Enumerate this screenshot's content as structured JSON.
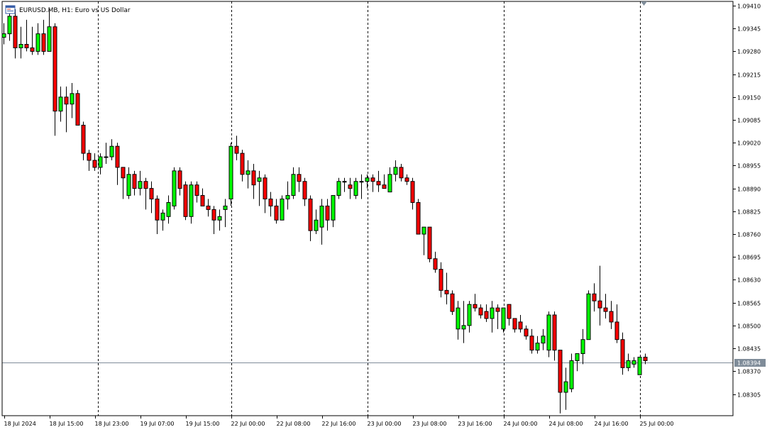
{
  "header": {
    "symbol_title": "EURUSD.MB, H1:  Euro vs US Dollar",
    "icon": "chart-window-icon"
  },
  "colors": {
    "background": "#ffffff",
    "frame": "#000000",
    "bull_body": "#00ff00",
    "bear_body": "#ff0000",
    "wick": "#000000",
    "separator": "#000000",
    "bid_line": "#7f8c99",
    "bid_box": "#7f8c99"
  },
  "chart_data": {
    "type": "candlestick",
    "title": "EURUSD.MB, H1:  Euro vs US Dollar",
    "timeframe": "H1",
    "ylim": [
      1.08245,
      1.0942
    ],
    "y_ticks": [
      1.0941,
      1.09345,
      1.0928,
      1.09215,
      1.0915,
      1.09085,
      1.0902,
      1.08955,
      1.0889,
      1.08825,
      1.0876,
      1.08695,
      1.0863,
      1.08565,
      1.085,
      1.08435,
      1.0837,
      1.08305
    ],
    "y_tick_labels": [
      "1.09410",
      "1.09345",
      "1.09280",
      "1.09215",
      "1.09150",
      "1.09085",
      "1.09020",
      "1.08955",
      "1.08890",
      "1.08825",
      "1.08760",
      "1.08695",
      "1.08630",
      "1.08565",
      "1.08500",
      "1.08435",
      "1.08370",
      "1.08305"
    ],
    "x_labels": [
      {
        "bar": 0,
        "label": "18 Jul 2024"
      },
      {
        "bar": 8,
        "label": "18 Jul 15:00"
      },
      {
        "bar": 16,
        "label": "18 Jul 23:00"
      },
      {
        "bar": 24,
        "label": "19 Jul 07:00"
      },
      {
        "bar": 32,
        "label": "19 Jul 15:00"
      },
      {
        "bar": 40,
        "label": "22 Jul 00:00"
      },
      {
        "bar": 48,
        "label": "22 Jul 08:00"
      },
      {
        "bar": 56,
        "label": "22 Jul 16:00"
      },
      {
        "bar": 64,
        "label": "23 Jul 00:00"
      },
      {
        "bar": 72,
        "label": "23 Jul 08:00"
      },
      {
        "bar": 80,
        "label": "23 Jul 16:00"
      },
      {
        "bar": 88,
        "label": "24 Jul 00:00"
      },
      {
        "bar": 96,
        "label": "24 Jul 08:00"
      },
      {
        "bar": 104,
        "label": "24 Jul 16:00"
      },
      {
        "bar": 112,
        "label": "25 Jul 00:00"
      }
    ],
    "day_separators_after_bar": [
      16.5,
      40,
      64,
      88,
      112
    ],
    "current_price": 1.08394,
    "current_price_label": "1.08394",
    "candles": [
      [
        1.0932,
        1.0936,
        1.093,
        1.0933
      ],
      [
        1.0933,
        1.0941,
        1.0931,
        1.0938
      ],
      [
        1.0938,
        1.094,
        1.0926,
        1.0929
      ],
      [
        1.0929,
        1.0935,
        1.0926,
        1.093
      ],
      [
        1.093,
        1.0937,
        1.0928,
        1.0929
      ],
      [
        1.0929,
        1.0935,
        1.0927,
        1.0928
      ],
      [
        1.0928,
        1.0936,
        1.0927,
        1.0933
      ],
      [
        1.0933,
        1.0937,
        1.0927,
        1.0928
      ],
      [
        1.0928,
        1.094,
        1.0928,
        1.0935
      ],
      [
        1.0935,
        1.0936,
        1.0904,
        1.0911
      ],
      [
        1.0911,
        1.0918,
        1.0908,
        1.0915
      ],
      [
        1.0915,
        1.0918,
        1.0905,
        1.0913
      ],
      [
        1.0913,
        1.0919,
        1.0909,
        1.0916
      ],
      [
        1.0916,
        1.0917,
        1.0907,
        1.0907
      ],
      [
        1.0907,
        1.0908,
        1.0897,
        1.0899
      ],
      [
        1.0899,
        1.09,
        1.0894,
        1.0897
      ],
      [
        1.0897,
        1.0899,
        1.0894,
        1.0895
      ],
      [
        1.0895,
        1.0899,
        1.0893,
        1.0898
      ],
      [
        1.0898,
        1.0902,
        1.0896,
        1.0898
      ],
      [
        1.0898,
        1.0903,
        1.0897,
        1.0901
      ],
      [
        1.0901,
        1.0902,
        1.089,
        1.0895
      ],
      [
        1.0895,
        1.0895,
        1.0886,
        1.0892
      ],
      [
        1.0887,
        1.0895,
        1.0886,
        1.0893
      ],
      [
        1.0893,
        1.0894,
        1.0887,
        1.0889
      ],
      [
        1.0889,
        1.0894,
        1.0887,
        1.0891
      ],
      [
        1.0891,
        1.0892,
        1.0883,
        1.0889
      ],
      [
        1.0889,
        1.0891,
        1.0882,
        1.0886
      ],
      [
        1.0886,
        1.0887,
        1.0876,
        1.088
      ],
      [
        1.088,
        1.0883,
        1.0877,
        1.0882
      ],
      [
        1.0881,
        1.0887,
        1.0879,
        1.0885
      ],
      [
        1.0884,
        1.0895,
        1.0883,
        1.0894
      ],
      [
        1.0894,
        1.0895,
        1.0887,
        1.0889
      ],
      [
        1.089,
        1.0891,
        1.088,
        1.0881
      ],
      [
        1.0881,
        1.0891,
        1.0879,
        1.089
      ],
      [
        1.089,
        1.0891,
        1.0885,
        1.0887
      ],
      [
        1.0887,
        1.0889,
        1.0885,
        1.0884
      ],
      [
        1.0884,
        1.0886,
        1.0881,
        1.0883
      ],
      [
        1.0883,
        1.0884,
        1.0876,
        1.088
      ],
      [
        1.088,
        1.0883,
        1.0877,
        1.0881
      ],
      [
        1.0883,
        1.0886,
        1.0878,
        1.0884
      ],
      [
        1.0886,
        1.0902,
        1.0884,
        1.0901
      ],
      [
        1.0901,
        1.0904,
        1.0897,
        1.0899
      ],
      [
        1.0899,
        1.09,
        1.0891,
        1.0893
      ],
      [
        1.0893,
        1.0897,
        1.0889,
        1.0894
      ],
      [
        1.0894,
        1.0896,
        1.0886,
        1.089
      ],
      [
        1.0891,
        1.0894,
        1.0884,
        1.0892
      ],
      [
        1.0892,
        1.0893,
        1.0882,
        1.0886
      ],
      [
        1.0886,
        1.0888,
        1.0881,
        1.0884
      ],
      [
        1.0884,
        1.0886,
        1.0879,
        1.088
      ],
      [
        1.088,
        1.0887,
        1.088,
        1.0886
      ],
      [
        1.0886,
        1.0891,
        1.0883,
        1.0887
      ],
      [
        1.0887,
        1.0895,
        1.0886,
        1.0893
      ],
      [
        1.0893,
        1.0895,
        1.0888,
        1.0891
      ],
      [
        1.0891,
        1.0892,
        1.0884,
        1.0886
      ],
      [
        1.0886,
        1.0887,
        1.0874,
        1.0877
      ],
      [
        1.0877,
        1.0883,
        1.0876,
        1.088
      ],
      [
        1.0878,
        1.0886,
        1.0873,
        1.0884
      ],
      [
        1.0884,
        1.0886,
        1.0877,
        1.088
      ],
      [
        1.088,
        1.0887,
        1.0878,
        1.0887
      ],
      [
        1.0887,
        1.0892,
        1.0886,
        1.0891
      ],
      [
        1.0891,
        1.0892,
        1.0888,
        1.0891
      ],
      [
        1.089,
        1.0892,
        1.0886,
        1.0889
      ],
      [
        1.0887,
        1.0892,
        1.0886,
        1.0891
      ],
      [
        1.0891,
        1.0893,
        1.0886,
        1.0891
      ],
      [
        1.0891,
        1.0893,
        1.0889,
        1.0892
      ],
      [
        1.0892,
        1.0893,
        1.0888,
        1.0891
      ],
      [
        1.0891,
        1.0894,
        1.0888,
        1.089
      ],
      [
        1.089,
        1.0893,
        1.0889,
        1.0889
      ],
      [
        1.0888,
        1.0895,
        1.0888,
        1.0893
      ],
      [
        1.0893,
        1.0897,
        1.0891,
        1.0895
      ],
      [
        1.0895,
        1.0896,
        1.0891,
        1.0892
      ],
      [
        1.0892,
        1.0893,
        1.089,
        1.0891
      ],
      [
        1.0891,
        1.0892,
        1.0883,
        1.0885
      ],
      [
        1.0885,
        1.0886,
        1.0876,
        1.0876
      ],
      [
        1.0876,
        1.0877,
        1.087,
        1.0878
      ],
      [
        1.0878,
        1.0878,
        1.0868,
        1.0869
      ],
      [
        1.0869,
        1.0871,
        1.0865,
        1.0866
      ],
      [
        1.0866,
        1.0868,
        1.0858,
        1.086
      ],
      [
        1.086,
        1.0865,
        1.0856,
        1.0859
      ],
      [
        1.0859,
        1.086,
        1.0853,
        1.0854
      ],
      [
        1.0849,
        1.0857,
        1.0846,
        1.0855
      ],
      [
        1.0849,
        1.0857,
        1.0845,
        1.085
      ],
      [
        1.085,
        1.0857,
        1.0848,
        1.0856
      ],
      [
        1.0856,
        1.0859,
        1.0854,
        1.0855
      ],
      [
        1.0855,
        1.0856,
        1.0852,
        1.0853
      ],
      [
        1.0854,
        1.0856,
        1.0851,
        1.0852
      ],
      [
        1.0852,
        1.0857,
        1.0848,
        1.0855
      ],
      [
        1.0855,
        1.0856,
        1.0849,
        1.0854
      ],
      [
        1.0849,
        1.0855,
        1.0848,
        1.0855
      ],
      [
        1.0856,
        1.0856,
        1.085,
        1.0852
      ],
      [
        1.0852,
        1.0852,
        1.0848,
        1.0849
      ],
      [
        1.0851,
        1.0853,
        1.0848,
        1.0849
      ],
      [
        1.0849,
        1.085,
        1.0846,
        1.0847
      ],
      [
        1.0847,
        1.0849,
        1.0842,
        1.0843
      ],
      [
        1.0843,
        1.0847,
        1.0842,
        1.0845
      ],
      [
        1.0845,
        1.0849,
        1.0843,
        1.0847
      ],
      [
        1.0843,
        1.0854,
        1.0841,
        1.0853
      ],
      [
        1.0853,
        1.0854,
        1.084,
        1.0843
      ],
      [
        1.0843,
        1.0843,
        1.0825,
        1.0831
      ],
      [
        1.0831,
        1.0838,
        1.0826,
        1.0834
      ],
      [
        1.0832,
        1.0842,
        1.0831,
        1.084
      ],
      [
        1.084,
        1.0842,
        1.0837,
        1.0842
      ],
      [
        1.0842,
        1.0849,
        1.0839,
        1.0846
      ],
      [
        1.0846,
        1.086,
        1.0846,
        1.0859
      ],
      [
        1.0859,
        1.0862,
        1.0854,
        1.0857
      ],
      [
        1.0857,
        1.0867,
        1.085,
        1.0855
      ],
      [
        1.0855,
        1.0859,
        1.0852,
        1.0854
      ],
      [
        1.0854,
        1.0857,
        1.0849,
        1.0851
      ],
      [
        1.0851,
        1.0856,
        1.0845,
        1.0846
      ],
      [
        1.0846,
        1.0848,
        1.0836,
        1.0838
      ],
      [
        1.0838,
        1.0842,
        1.0837,
        1.084
      ],
      [
        1.0839,
        1.0841,
        1.0838,
        1.084
      ],
      [
        1.0836,
        1.0841,
        1.0836,
        1.0841
      ],
      [
        1.0841,
        1.0842,
        1.0839,
        1.084
      ]
    ]
  }
}
